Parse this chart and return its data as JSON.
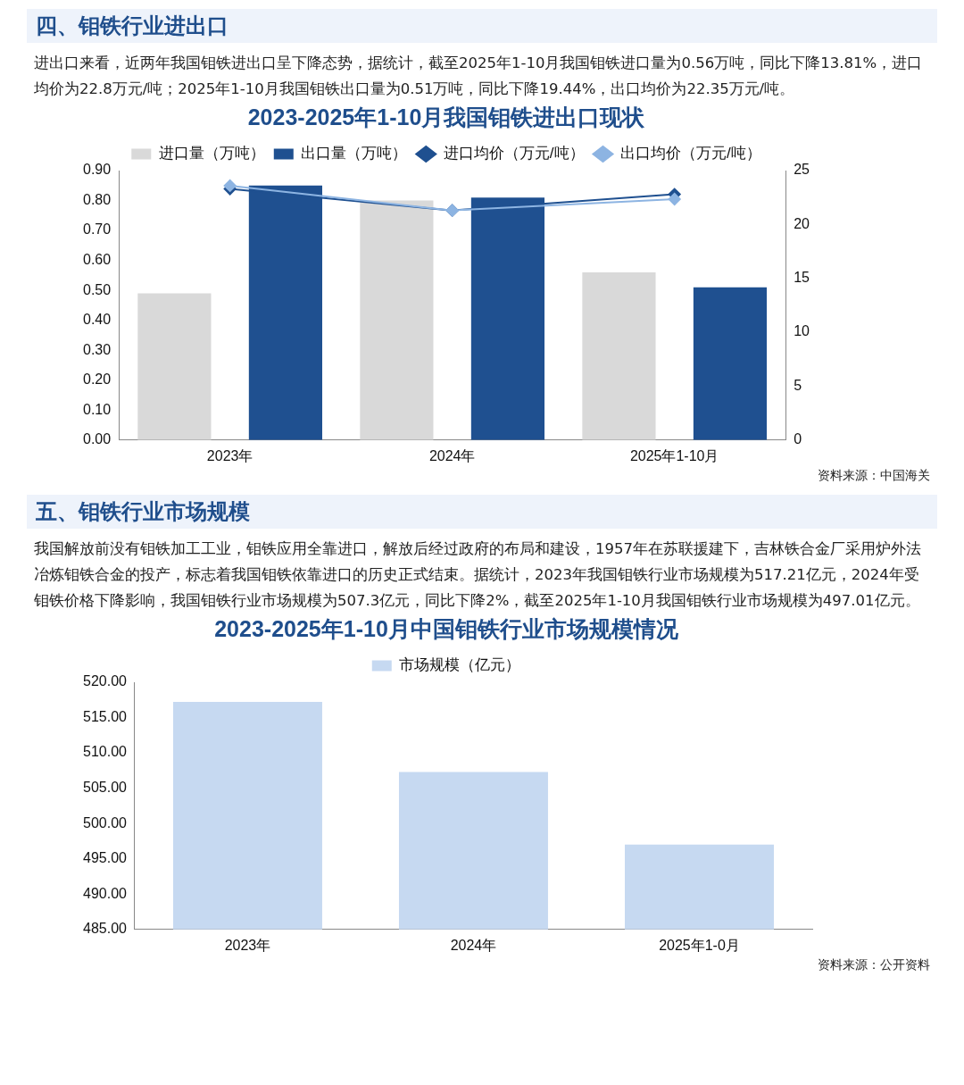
{
  "chart_data": [
    {
      "type": "bar",
      "title": "2023-2025年1-10月我国钼铁进出口现状",
      "annotations": [
        "四、钼铁行业进出口",
        "进出口来看，近两年我国钼铁进出口呈下降态势，据统计，截至2025年1-10月我国钼铁进口量为0.56万吨，同比下降13.81%，进口均价为22.8万元/吨；2025年1-10月我国钼铁出口量为0.51万吨，同比下降19.44%，出口均价为22.35万元/吨。",
        "资料来源：中国海关"
      ],
      "categories": [
        "2023年",
        "2024年",
        "2025年1-10月"
      ],
      "series": [
        {
          "name": "进口量（万吨）",
          "color": "#d9d9d9",
          "values": [
            0.49,
            0.8,
            0.56
          ]
        },
        {
          "name": "出口量（万吨）",
          "color": "#1f5090",
          "values": [
            0.85,
            0.81,
            0.51
          ]
        },
        {
          "name": "进口均价（万元/吨）",
          "type": "line",
          "axis": "y2",
          "color": "#1f5090",
          "values": [
            23.3,
            21.3,
            22.8
          ]
        },
        {
          "name": "出口均价（万元/吨）",
          "type": "line",
          "axis": "y2",
          "color": "#8db4e2",
          "values": [
            23.6,
            21.3,
            22.35
          ]
        }
      ],
      "ylim": [
        0,
        0.9
      ],
      "yticks": [
        {
          "value": 0,
          "label": "0.00"
        },
        {
          "value": 0.1,
          "label": "0.10"
        },
        {
          "value": 0.2,
          "label": "0.20"
        },
        {
          "value": 0.3,
          "label": "0.30"
        },
        {
          "value": 0.4,
          "label": "0.40"
        },
        {
          "value": 0.5,
          "label": "0.50"
        },
        {
          "value": 0.6,
          "label": "0.60"
        },
        {
          "value": 0.7,
          "label": "0.70"
        },
        {
          "value": 0.8,
          "label": "0.80"
        },
        {
          "value": 0.9,
          "label": "0.90"
        }
      ],
      "y2lim": [
        0,
        25
      ],
      "y2ticks": [
        0,
        5,
        10,
        15,
        20,
        25
      ],
      "marker": "diamond",
      "legend": "top",
      "grid": false
    },
    {
      "type": "bar",
      "title": "2023-2025年1-10月中国钼铁行业市场规模情况",
      "annotations": [
        "五、钼铁行业市场规模",
        "我国解放前没有钼铁加工工业，钼铁应用全靠进口，解放后经过政府的布局和建设，1957年在苏联援建下，吉林铁合金厂采用炉外法冶炼钼铁合金的投产，标志着我国钼铁依靠进口的历史正式结束。据统计，2023年我国钼铁行业市场规模为517.21亿元，2024年受钼铁价格下降影响，我国钼铁行业市场规模为507.3亿元，同比下降2%，截至2025年1-10月我国钼铁行业市场规模为497.01亿元。",
        "资料来源：公开资料"
      ],
      "categories": [
        "2023年",
        "2024年",
        "2025年1-0月"
      ],
      "series": [
        {
          "name": "市场规模（亿元）",
          "color": "#c6d9f1",
          "values": [
            517.21,
            507.3,
            497.01
          ]
        }
      ],
      "ylim": [
        485,
        520
      ],
      "yticks": [
        {
          "value": 485,
          "label": "485.00"
        },
        {
          "value": 490,
          "label": "490.00"
        },
        {
          "value": 495,
          "label": "495.00"
        },
        {
          "value": 500,
          "label": "500.00"
        },
        {
          "value": 505,
          "label": "505.00"
        },
        {
          "value": 510,
          "label": "510.00"
        },
        {
          "value": 515,
          "label": "515.00"
        },
        {
          "value": 520,
          "label": "520.00"
        }
      ],
      "legend": "top",
      "grid": false
    }
  ]
}
